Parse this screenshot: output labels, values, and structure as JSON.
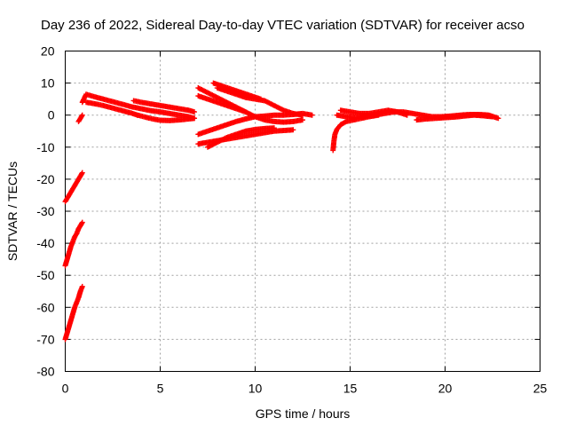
{
  "chart_data": {
    "type": "scatter",
    "title": "Day 236 of 2022, Sidereal Day-to-day VTEC variation (SDTVAR) for receiver acso",
    "xlabel": "GPS time / hours",
    "ylabel": "SDTVAR / TECUs",
    "xlim": [
      0,
      25
    ],
    "ylim": [
      -80,
      20
    ],
    "x_ticks": [
      0,
      5,
      10,
      15,
      20,
      25
    ],
    "y_ticks": [
      -80,
      -70,
      -60,
      -50,
      -40,
      -30,
      -20,
      -10,
      0,
      10,
      20
    ],
    "grid": true,
    "marker": "+",
    "color": "#ff0000",
    "series": [
      {
        "name": "s1",
        "points": [
          [
            0.0,
            -27
          ],
          [
            0.1,
            -26
          ],
          [
            0.2,
            -25
          ],
          [
            0.3,
            -24
          ],
          [
            0.4,
            -23
          ],
          [
            0.5,
            -22
          ],
          [
            0.6,
            -21
          ],
          [
            0.7,
            -20
          ],
          [
            0.8,
            -19
          ],
          [
            0.9,
            -18
          ]
        ]
      },
      {
        "name": "s2",
        "points": [
          [
            0.0,
            -47
          ],
          [
            0.1,
            -45
          ],
          [
            0.2,
            -43
          ],
          [
            0.3,
            -41
          ],
          [
            0.4,
            -39.5
          ],
          [
            0.5,
            -38
          ],
          [
            0.6,
            -37
          ],
          [
            0.7,
            -35.5
          ],
          [
            0.8,
            -34.5
          ],
          [
            0.9,
            -33.5
          ]
        ]
      },
      {
        "name": "s3",
        "points": [
          [
            0.0,
            -70
          ],
          [
            0.1,
            -68
          ],
          [
            0.2,
            -66
          ],
          [
            0.3,
            -64
          ],
          [
            0.4,
            -62
          ],
          [
            0.5,
            -60
          ],
          [
            0.6,
            -58.5
          ],
          [
            0.7,
            -57
          ],
          [
            0.8,
            -55
          ],
          [
            0.9,
            -53.5
          ]
        ]
      },
      {
        "name": "s4",
        "points": [
          [
            0.7,
            -2
          ],
          [
            0.8,
            -1
          ],
          [
            0.9,
            0
          ]
        ]
      },
      {
        "name": "s5",
        "points": [
          [
            0.9,
            4
          ],
          [
            1.1,
            6.5
          ],
          [
            1.5,
            5.8
          ],
          [
            2.0,
            5
          ],
          [
            2.5,
            4.2
          ],
          [
            3.0,
            3.4
          ],
          [
            3.5,
            2.6
          ],
          [
            4.0,
            2
          ],
          [
            4.5,
            1.4
          ],
          [
            5.0,
            1
          ],
          [
            5.5,
            0.5
          ],
          [
            6.0,
            0
          ],
          [
            6.5,
            -0.5
          ],
          [
            6.8,
            -1
          ]
        ]
      },
      {
        "name": "s6",
        "points": [
          [
            1.1,
            4
          ],
          [
            1.6,
            3.5
          ],
          [
            2.0,
            3
          ],
          [
            2.5,
            2.2
          ],
          [
            3.0,
            1.4
          ],
          [
            3.5,
            0.6
          ],
          [
            3.8,
            0
          ]
        ]
      },
      {
        "name": "s7",
        "points": [
          [
            3.6,
            4.5
          ],
          [
            4.0,
            4
          ],
          [
            4.5,
            3.5
          ],
          [
            5.0,
            3
          ],
          [
            5.5,
            2.5
          ],
          [
            6.0,
            2
          ],
          [
            6.5,
            1.5
          ],
          [
            6.8,
            1
          ]
        ]
      },
      {
        "name": "s8",
        "points": [
          [
            3.8,
            0
          ],
          [
            4.2,
            -0.6
          ],
          [
            4.6,
            -1.2
          ],
          [
            5.0,
            -1.6
          ],
          [
            5.5,
            -1.7
          ],
          [
            6.0,
            -1.5
          ],
          [
            6.5,
            -1.2
          ],
          [
            6.8,
            -1
          ]
        ]
      },
      {
        "name": "s9",
        "points": [
          [
            7.0,
            8.5
          ],
          [
            7.5,
            7
          ],
          [
            8.0,
            5.5
          ],
          [
            8.5,
            4
          ],
          [
            9.0,
            2.5
          ],
          [
            9.5,
            1
          ],
          [
            10.0,
            -0.5
          ],
          [
            10.5,
            -1.5
          ],
          [
            11.0,
            -2
          ],
          [
            11.5,
            -2.2
          ],
          [
            12.0,
            -2
          ],
          [
            12.5,
            -1.5
          ]
        ]
      },
      {
        "name": "s10",
        "points": [
          [
            7.0,
            6
          ],
          [
            7.5,
            5
          ],
          [
            8.0,
            4
          ],
          [
            8.5,
            3
          ],
          [
            9.0,
            2
          ],
          [
            9.5,
            1
          ]
        ]
      },
      {
        "name": "s11",
        "points": [
          [
            7.8,
            10
          ],
          [
            8.3,
            9
          ],
          [
            8.8,
            8
          ],
          [
            9.3,
            7
          ],
          [
            9.8,
            6
          ],
          [
            10.3,
            5
          ]
        ]
      },
      {
        "name": "s12",
        "points": [
          [
            8.0,
            8.5
          ],
          [
            8.5,
            7.5
          ],
          [
            9.0,
            6.5
          ],
          [
            9.5,
            5.5
          ],
          [
            10.0,
            5
          ],
          [
            10.5,
            4.5
          ],
          [
            11.0,
            3
          ],
          [
            11.5,
            1.5
          ],
          [
            12.0,
            0.5
          ],
          [
            12.5,
            0
          ]
        ]
      },
      {
        "name": "s13",
        "points": [
          [
            7.0,
            -6
          ],
          [
            7.5,
            -5
          ],
          [
            8.0,
            -4
          ],
          [
            8.5,
            -3
          ],
          [
            9.0,
            -2
          ],
          [
            9.5,
            -1.2
          ],
          [
            10.0,
            -0.5
          ],
          [
            10.5,
            -0.3
          ],
          [
            11.0,
            0
          ],
          [
            11.5,
            0
          ],
          [
            12.0,
            0.2
          ],
          [
            12.5,
            0.5
          ],
          [
            13.0,
            0
          ]
        ]
      },
      {
        "name": "s14",
        "points": [
          [
            7.0,
            -9
          ],
          [
            7.5,
            -8.5
          ],
          [
            8.0,
            -8
          ],
          [
            8.5,
            -7.5
          ],
          [
            9.0,
            -7
          ],
          [
            9.5,
            -6.5
          ],
          [
            10.0,
            -6
          ],
          [
            10.5,
            -5.5
          ],
          [
            11.0,
            -5
          ],
          [
            11.5,
            -4.8
          ],
          [
            12.0,
            -4.6
          ]
        ]
      },
      {
        "name": "s15",
        "points": [
          [
            7.5,
            -10
          ],
          [
            8.0,
            -8.5
          ],
          [
            8.5,
            -7
          ],
          [
            9.0,
            -6
          ],
          [
            9.5,
            -5
          ],
          [
            10.0,
            -4.5
          ],
          [
            10.5,
            -4.2
          ],
          [
            11.0,
            -4
          ]
        ]
      },
      {
        "name": "s16",
        "points": [
          [
            14.1,
            -11
          ],
          [
            14.15,
            -8
          ],
          [
            14.2,
            -6
          ],
          [
            14.3,
            -4.5
          ],
          [
            14.5,
            -3
          ],
          [
            14.8,
            -2
          ],
          [
            15.2,
            -1.5
          ],
          [
            15.6,
            -1
          ],
          [
            16.0,
            -0.5
          ],
          [
            16.5,
            0
          ]
        ]
      },
      {
        "name": "s17",
        "points": [
          [
            14.3,
            0
          ],
          [
            14.8,
            -0.5
          ],
          [
            15.3,
            -0.8
          ],
          [
            15.8,
            -0.4
          ],
          [
            16.3,
            0
          ],
          [
            16.8,
            0.5
          ],
          [
            17.3,
            1
          ],
          [
            17.8,
            1
          ],
          [
            18.3,
            0.5
          ],
          [
            18.8,
            0
          ],
          [
            19.3,
            -0.5
          ],
          [
            19.8,
            -0.5
          ],
          [
            20.3,
            -0.3
          ],
          [
            20.8,
            0
          ],
          [
            21.3,
            0.2
          ],
          [
            21.8,
            0.2
          ],
          [
            22.3,
            0
          ],
          [
            22.8,
            -1
          ]
        ]
      },
      {
        "name": "s18",
        "points": [
          [
            14.5,
            1.5
          ],
          [
            15.0,
            1
          ],
          [
            15.5,
            0.5
          ],
          [
            16.0,
            0.5
          ],
          [
            16.5,
            1
          ],
          [
            17.0,
            1.5
          ],
          [
            17.5,
            1
          ],
          [
            18.0,
            0
          ]
        ]
      },
      {
        "name": "s19",
        "points": [
          [
            18.5,
            -1.5
          ],
          [
            19.0,
            -1.2
          ],
          [
            19.5,
            -1
          ],
          [
            20.0,
            -0.8
          ],
          [
            20.5,
            -0.6
          ],
          [
            21.0,
            -0.3
          ],
          [
            21.5,
            0
          ],
          [
            22.0,
            -0.2
          ],
          [
            22.5,
            -0.5
          ]
        ]
      }
    ]
  }
}
